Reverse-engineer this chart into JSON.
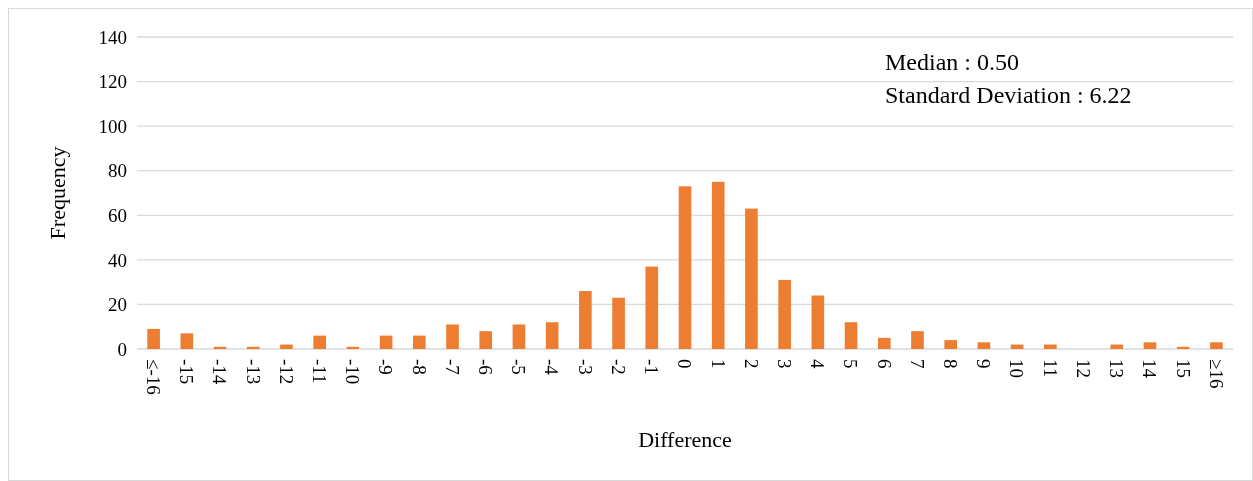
{
  "chart_data": {
    "type": "bar",
    "xlabel": "Difference",
    "ylabel": "Frequency",
    "categories": [
      "≤-16",
      "-15",
      "-14",
      "-13",
      "-12",
      "-11",
      "-10",
      "-9",
      "-8",
      "-7",
      "-6",
      "-5",
      "-4",
      "-3",
      "-2",
      "-1",
      "0",
      "1",
      "2",
      "3",
      "4",
      "5",
      "6",
      "7",
      "8",
      "9",
      "10",
      "11",
      "12",
      "13",
      "14",
      "15",
      "≥16"
    ],
    "values": [
      9,
      7,
      1,
      1,
      2,
      6,
      1,
      6,
      6,
      11,
      8,
      11,
      12,
      26,
      23,
      37,
      73,
      75,
      63,
      31,
      24,
      12,
      5,
      8,
      4,
      3,
      2,
      2,
      0,
      2,
      3,
      1,
      3
    ],
    "color": "#ed7d31",
    "ylim": [
      0,
      140
    ],
    "yticks": [
      0,
      20,
      40,
      60,
      80,
      100,
      120,
      140
    ],
    "grid": "y",
    "annotations": [
      "Median : 0.50",
      "Standard Deviation : 6.22"
    ]
  }
}
